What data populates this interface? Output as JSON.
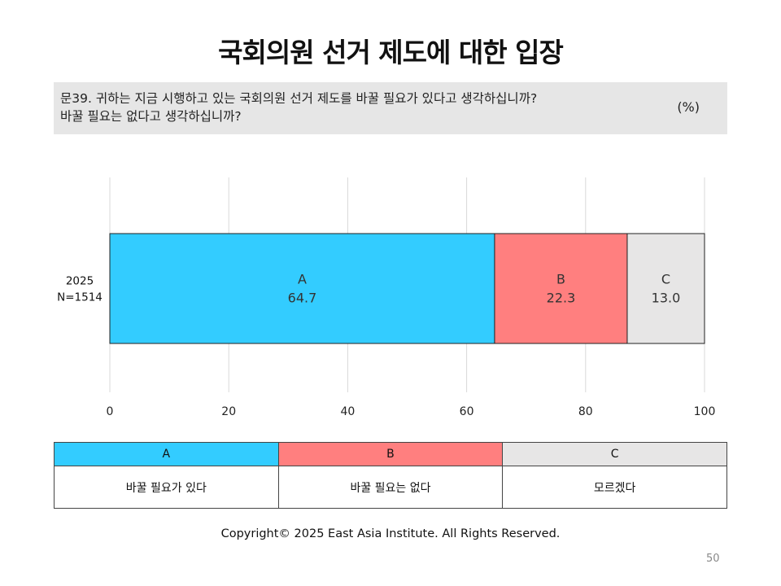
{
  "title": "국회의원 선거 제도에 대한 입장",
  "question": {
    "line1": "문39. 귀하는 지금 시행하고 있는 국회의원 선거 제도를 바꿀 필요가 있다고 생각하십니까?",
    "line2": "바꿀 필요는 없다고 생각하십니까?",
    "unit": "(%)"
  },
  "chart_data": {
    "type": "bar",
    "stacked": true,
    "orientation": "horizontal",
    "categories": [
      "2025\nN=1514"
    ],
    "category_label_lines": [
      "2025",
      "N=1514"
    ],
    "series": [
      {
        "name": "A",
        "values": [
          64.7
        ],
        "color": "#33ccff"
      },
      {
        "name": "B",
        "values": [
          22.3
        ],
        "color": "#ff7f7f"
      },
      {
        "name": "C",
        "values": [
          13.0
        ],
        "color": "#e7e6e6"
      }
    ],
    "data_labels": [
      "64.7",
      "22.3",
      "13.0"
    ],
    "xlim": [
      0,
      100
    ],
    "xticks": [
      0,
      20,
      40,
      60,
      80,
      100
    ],
    "grid": true
  },
  "legend": {
    "headers": [
      "A",
      "B",
      "C"
    ],
    "descriptions": [
      "바꿀 필요가 있다",
      "바꿀 필요는 없다",
      "모르겠다"
    ],
    "colors": [
      "#33ccff",
      "#ff7f7f",
      "#e7e6e6"
    ]
  },
  "copyright": "Copyright© 2025 East Asia Institute. All Rights Reserved.",
  "page_number": "50"
}
